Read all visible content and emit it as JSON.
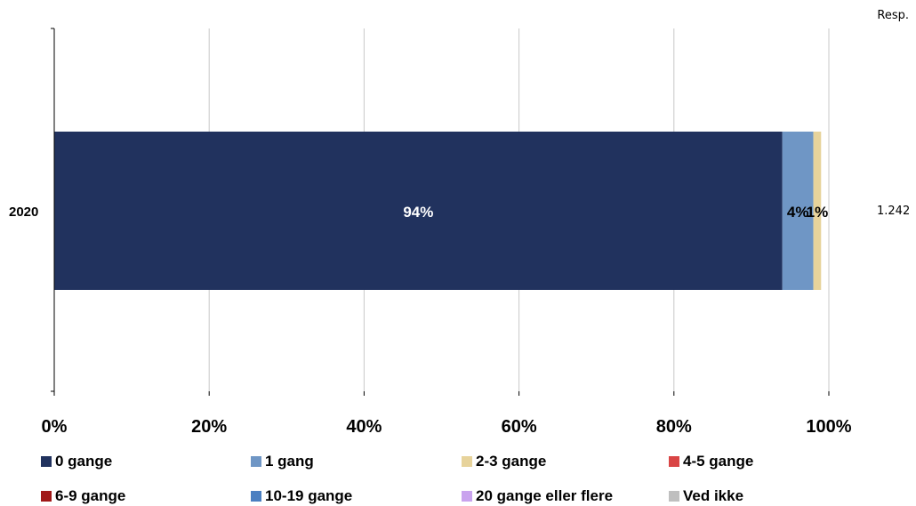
{
  "chart_data": {
    "type": "bar",
    "orientation": "horizontal",
    "stacked": true,
    "categories": [
      "2020"
    ],
    "series": [
      {
        "name": "0 gange",
        "values": [
          94
        ],
        "label": "94%",
        "color": "#21325e",
        "label_color": "#ffffff"
      },
      {
        "name": "1 gang",
        "values": [
          4
        ],
        "label": "4%",
        "color": "#6f96c5",
        "label_color": "#000000"
      },
      {
        "name": "2-3 gange",
        "values": [
          1
        ],
        "label": "1%",
        "color": "#e7d39b",
        "label_color": "#000000"
      },
      {
        "name": "4-5 gange",
        "values": [
          0
        ],
        "label": "",
        "color": "#d94545",
        "label_color": "#000000"
      },
      {
        "name": "6-9 gange",
        "values": [
          0
        ],
        "label": "",
        "color": "#a01818",
        "label_color": "#000000"
      },
      {
        "name": "10-19 gange",
        "values": [
          0
        ],
        "label": "",
        "color": "#4a7fc1",
        "label_color": "#000000"
      },
      {
        "name": "20 gange eller flere",
        "values": [
          0
        ],
        "label": "",
        "color": "#c9a3ee",
        "label_color": "#000000"
      },
      {
        "name": "Ved ikke",
        "values": [
          0
        ],
        "label": "",
        "color": "#bfbfbf",
        "label_color": "#000000"
      }
    ],
    "xlim": [
      0,
      100
    ],
    "xticks": [
      "0%",
      "20%",
      "40%",
      "60%",
      "80%",
      "100%"
    ],
    "grid": true,
    "legend_position": "bottom",
    "resp_header": "Resp.",
    "resp_values": [
      "1.242"
    ]
  }
}
